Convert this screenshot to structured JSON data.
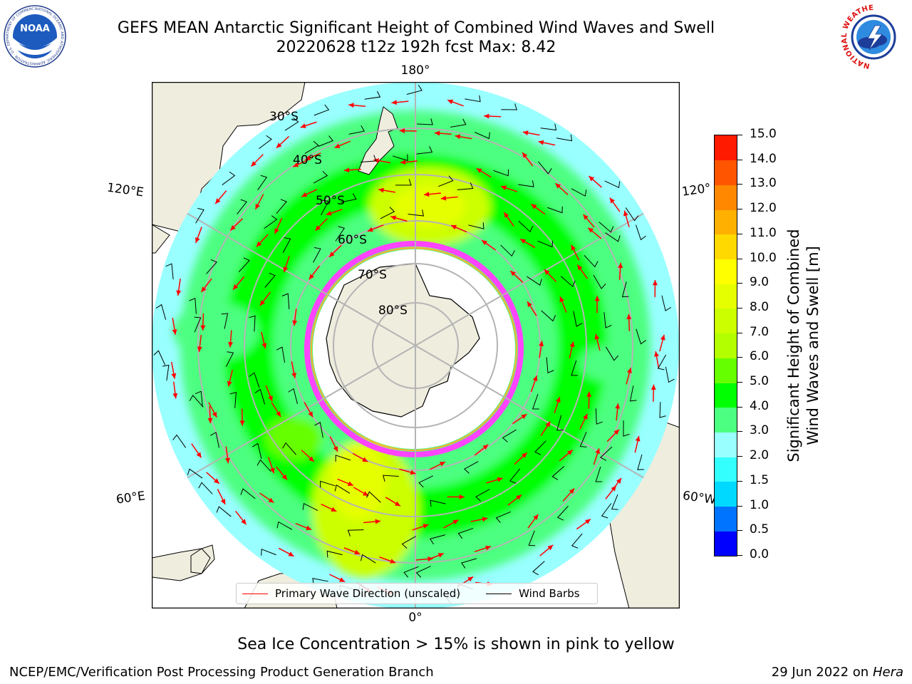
{
  "title": {
    "line1": "GEFS MEAN Antarctic Significant Height of Combined Wind Waves and Swell",
    "line2": "20220628 t12z 192h fcst   Max: 8.42"
  },
  "logos": {
    "left": {
      "name": "NOAA",
      "text": "NOAA",
      "ring_text": "NATIONAL OCEANIC AND ATMOSPHERIC ADMINISTRATION · U.S. DEPARTMENT OF COMMERCE"
    },
    "right": {
      "name": "National Weather Service",
      "ring_text": "NATIONAL WEATHER SERVICE"
    }
  },
  "map": {
    "projection": "south polar stereographic",
    "longitude_labels": {
      "top": "180°",
      "bottom": "0°",
      "upper_left": "120°E",
      "lower_left": "60°E",
      "upper_right": "120°",
      "lower_right": "60°W"
    },
    "latitude_labels": [
      "30°S",
      "40°S",
      "50°S",
      "60°S",
      "70°S",
      "80°S"
    ],
    "sea_ice_color": "#ff44ff",
    "land_color": "#efedde",
    "ocean_base_color": "#99ffff"
  },
  "legend": {
    "wave_direction": "Primary Wave Direction (unscaled)",
    "wind_barbs": "Wind Barbs",
    "wave_color": "#ff0000",
    "barb_color": "#000000"
  },
  "colorbar": {
    "label_line1": "Significant Height of Combined",
    "label_line2": "Wind Waves and Swell [m]",
    "ticks": [
      "0.0",
      "0.5",
      "1.0",
      "1.5",
      "2.0",
      "3.0",
      "4.0",
      "5.0",
      "6.0",
      "7.0",
      "8.0",
      "9.0",
      "10.0",
      "11.0",
      "12.0",
      "13.0",
      "14.0",
      "15.0"
    ],
    "colors": [
      "#0000ff",
      "#0073ff",
      "#00d9ff",
      "#33ffff",
      "#99ffff",
      "#4dff80",
      "#00ff00",
      "#66ff00",
      "#b3ff00",
      "#ccff00",
      "#e6ff00",
      "#ffff00",
      "#ffd900",
      "#ffb000",
      "#ff8800",
      "#ff5500",
      "#ff1a00"
    ]
  },
  "footer": {
    "note": "Sea Ice Concentration > 15% is shown in pink to yellow",
    "credit": "NCEP/EMC/Verification Post Processing Product Generation Branch",
    "date": "29 Jun 2022 on",
    "host": "Hera"
  }
}
